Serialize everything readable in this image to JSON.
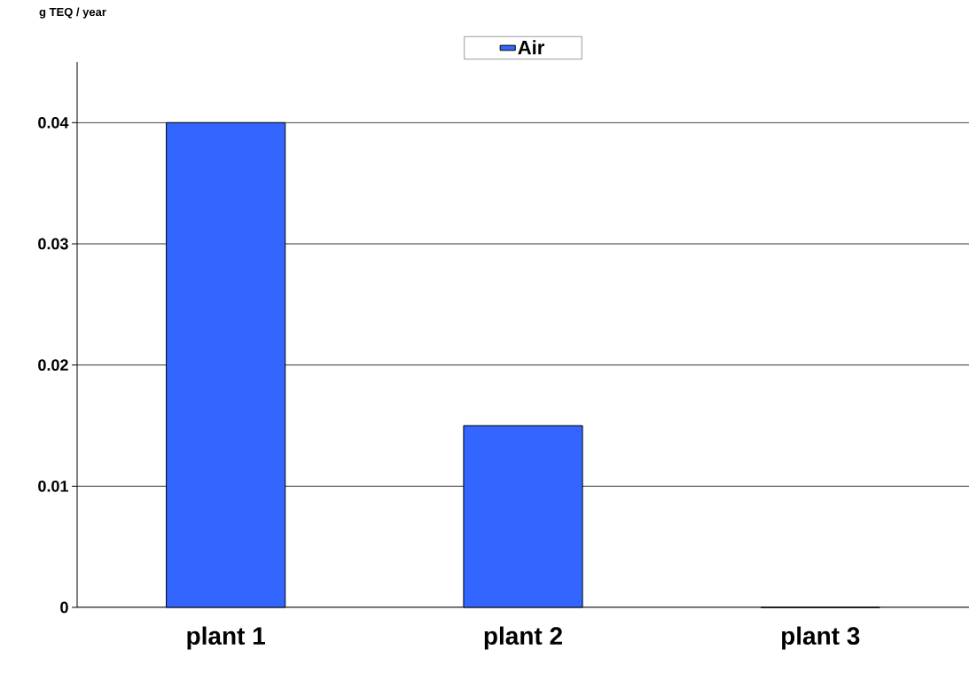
{
  "chart_data": {
    "type": "bar",
    "ylabel": "g TEQ / year",
    "categories": [
      "plant 1",
      "plant 2",
      "plant 3"
    ],
    "series": [
      {
        "name": "Air",
        "color": "#3366ff",
        "values": [
          0.04,
          0.015,
          0
        ]
      }
    ],
    "ylim": [
      0,
      0.045
    ],
    "yticks": [
      0,
      0.01,
      0.02,
      0.03,
      0.04
    ],
    "grid": "y",
    "legend": "top"
  }
}
